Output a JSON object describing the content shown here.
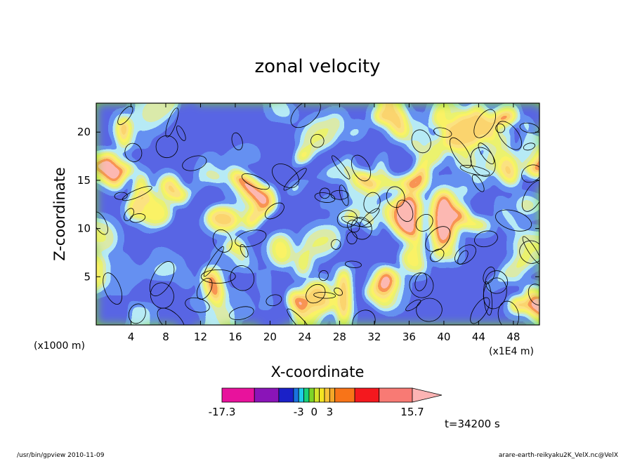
{
  "chart_data": {
    "type": "heatmap",
    "title": "zonal velocity",
    "xlabel": "X-coordinate",
    "ylabel": "Z-coordinate",
    "x_unit_left": "(x1000 m)",
    "x_unit_right": "(x1E4 m)",
    "xlim": [
      0,
      51
    ],
    "ylim": [
      0,
      23
    ],
    "x_ticks": [
      4,
      8,
      12,
      16,
      20,
      24,
      28,
      32,
      36,
      40,
      44,
      48
    ],
    "y_ticks": [
      5,
      10,
      15,
      20
    ],
    "colorbar": {
      "colors": [
        "#e8129c",
        "#8a14b8",
        "#1a20c8",
        "#1a72e0",
        "#20cce8",
        "#18d27a",
        "#7ed428",
        "#d4e42a",
        "#f4e422",
        "#f8c238",
        "#f4a828",
        "#f87418",
        "#f4181e",
        "#f87a74",
        "#fcb4b4"
      ],
      "tick_labels": [
        "-17.3",
        "-3",
        "0",
        "3",
        "15.7"
      ],
      "tick_values": [
        -17.3,
        -3,
        0,
        3,
        15.7
      ]
    },
    "time_label": "t=34200 s"
  },
  "footer": {
    "left": "/usr/bin/gpview   2010-11-09",
    "right": "arare-earth-reikyaku2K_VelX.nc@VelX"
  }
}
